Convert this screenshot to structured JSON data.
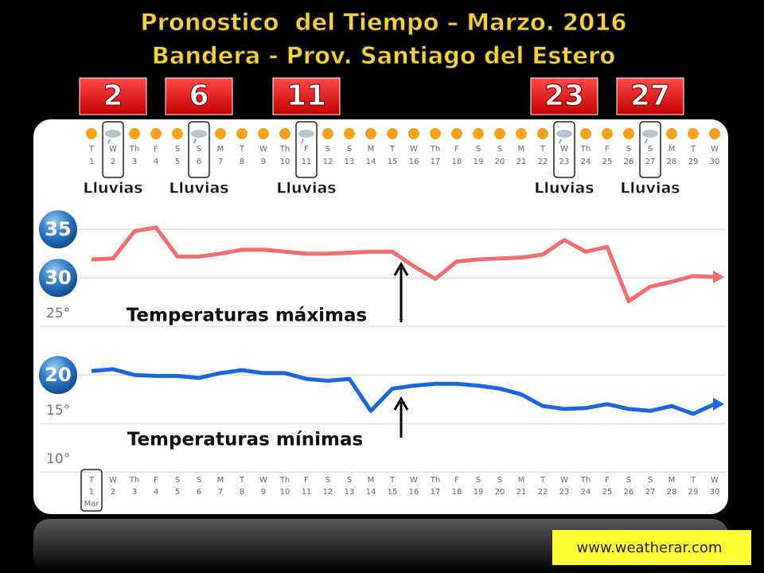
{
  "chart_data": {
    "type": "line",
    "title": "Pronostico  del Tiempo – Marzo. 2016",
    "subtitle": "Bandera - Prov. Santiago del Estero",
    "x": [
      1,
      2,
      3,
      4,
      5,
      6,
      7,
      8,
      9,
      10,
      11,
      12,
      13,
      14,
      15,
      16,
      17,
      18,
      19,
      20,
      21,
      22,
      23,
      24,
      25,
      26,
      27,
      28,
      29,
      30
    ],
    "weekdays": [
      "T",
      "W",
      "Th",
      "F",
      "S",
      "S",
      "M",
      "T",
      "W",
      "Th",
      "F",
      "S",
      "S",
      "M",
      "T",
      "W",
      "Th",
      "F",
      "S",
      "S",
      "M",
      "T",
      "W",
      "Th",
      "F",
      "S",
      "S",
      "M",
      "T",
      "W"
    ],
    "month_label": "Mar",
    "xlim": [
      1,
      30
    ],
    "ylim": [
      6,
      46
    ],
    "yticks": [
      35,
      30,
      {
        "value": 25,
        "label": "25°"
      },
      20,
      {
        "value": 15,
        "label": "15°"
      },
      {
        "value": 10,
        "label": "10°"
      }
    ],
    "grid": true,
    "series": [
      {
        "name": "Temperaturas máximas",
        "color": "#f26d6d",
        "values": [
          31.9,
          32.0,
          34.8,
          35.2,
          32.2,
          32.2,
          32.5,
          32.9,
          32.9,
          32.7,
          32.5,
          32.5,
          32.6,
          32.7,
          32.7,
          31.2,
          29.9,
          31.7,
          31.9,
          32.0,
          32.1,
          32.4,
          33.9,
          32.7,
          33.2,
          27.6,
          29.1,
          29.6,
          30.2,
          30.1
        ]
      },
      {
        "name": "Temperaturas mínimas",
        "color": "#1a66e0",
        "values": [
          20.4,
          20.6,
          20.0,
          19.9,
          19.9,
          19.7,
          20.2,
          20.5,
          20.2,
          20.2,
          19.6,
          19.4,
          19.6,
          16.3,
          18.6,
          18.9,
          19.1,
          19.1,
          18.9,
          18.6,
          18.0,
          16.8,
          16.5,
          16.6,
          17.0,
          16.5,
          16.3,
          16.8,
          16.0,
          17.0
        ]
      }
    ],
    "rain_days": [
      2,
      6,
      11,
      23,
      27
    ],
    "rain_label": "Lluvias",
    "source": "www.weatherar.com"
  }
}
